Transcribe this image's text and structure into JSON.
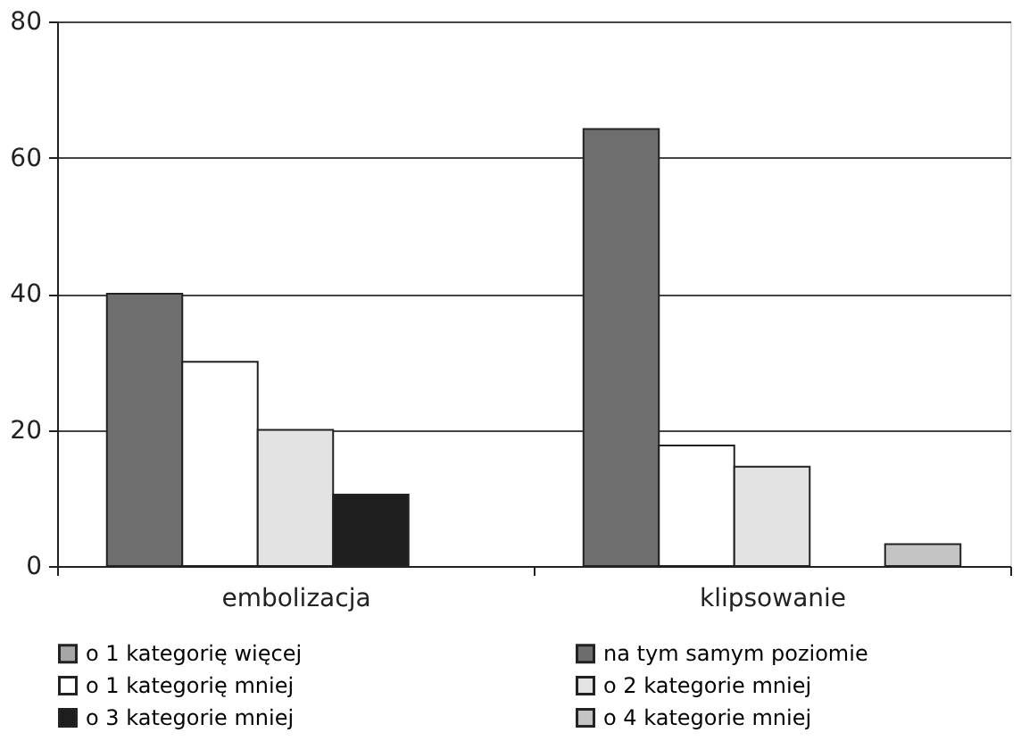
{
  "chart_data": {
    "type": "bar",
    "categories": [
      "embolizacja",
      "klipsowanie"
    ],
    "series": [
      {
        "name": "o 1 kategorię więcej",
        "color": "#a6a6a6",
        "values": [
          null,
          null
        ]
      },
      {
        "name": "na tym samym poziomie",
        "color": "#6e6e6e",
        "values": [
          40,
          64.2
        ]
      },
      {
        "name": "o 1 kategorię mniej",
        "color": "#ffffff",
        "values": [
          30,
          17.7
        ]
      },
      {
        "name": "o 2 kategorie mniej",
        "color": "#e3e3e3",
        "values": [
          20,
          14.6
        ]
      },
      {
        "name": "o 3 kategorie mniej",
        "color": "#1e1e1e",
        "values": [
          10.5,
          null
        ]
      },
      {
        "name": "o 4 kategorie mniej",
        "color": "#c4c4c4",
        "values": [
          null,
          3.2
        ]
      }
    ],
    "ylim": [
      0,
      80
    ],
    "yticks": [
      0,
      20,
      40,
      60,
      80
    ],
    "grid": "y",
    "legend": "bottom"
  }
}
